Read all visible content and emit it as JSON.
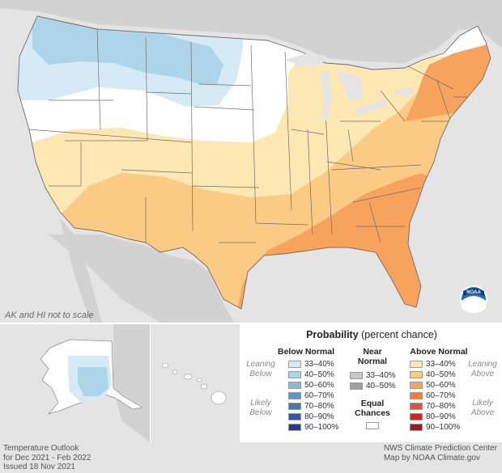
{
  "map_note": "AK and HI not to scale",
  "legend": {
    "title_bold": "Probability",
    "title_rest": " (percent chance)",
    "below": {
      "heading": "Below Normal",
      "leaning": "Leaning Below",
      "likely": "Likely Below",
      "ranges": [
        "33–40%",
        "40–50%",
        "50–60%",
        "60–70%",
        "70–80%",
        "80–90%",
        "90–100%"
      ],
      "colors": [
        "#d6eaf5",
        "#aed4ea",
        "#86b9da",
        "#5f96c6",
        "#4a74b4",
        "#3b55a5",
        "#2b3690"
      ]
    },
    "near": {
      "heading": "Near Normal",
      "ranges": [
        "33–40%",
        "40–50%"
      ],
      "colors": [
        "#c8c8c8",
        "#a0a0a0"
      ],
      "ec_heading": "Equal Chances",
      "ec_color": "#ffffff"
    },
    "above": {
      "heading": "Above Normal",
      "leaning": "Leaning Above",
      "likely": "Likely Above",
      "ranges": [
        "33–40%",
        "40–50%",
        "50–60%",
        "60–70%",
        "70–80%",
        "80–90%",
        "90–100%"
      ],
      "colors": [
        "#fde8b4",
        "#fbcb85",
        "#f8a35d",
        "#f07f43",
        "#e0543a",
        "#c8282c",
        "#a0141c"
      ]
    }
  },
  "credits": {
    "left": [
      "Temperature Outlook",
      "for Dec 2021 - Feb 2022",
      "Issued 18 Nov 2021"
    ],
    "right": [
      "NWS Climate Prediction Center",
      "Map by NOAA Climate.gov"
    ]
  },
  "logo_text": "NOAA"
}
